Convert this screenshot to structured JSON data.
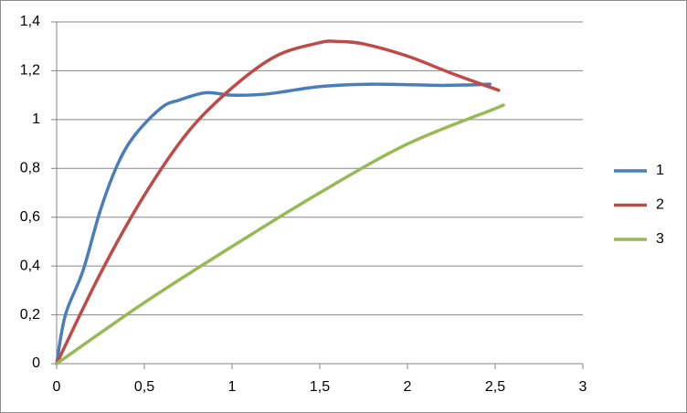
{
  "chart_data": {
    "type": "line",
    "series": [
      {
        "name": "1",
        "color": "#4a7ebb",
        "x": [
          0,
          0.05,
          0.15,
          0.25,
          0.35,
          0.45,
          0.6,
          0.7,
          0.85,
          1.0,
          1.2,
          1.5,
          1.8,
          2.2,
          2.47
        ],
        "values": [
          0,
          0.2,
          0.38,
          0.63,
          0.82,
          0.94,
          1.05,
          1.08,
          1.11,
          1.1,
          1.105,
          1.135,
          1.145,
          1.14,
          1.145
        ]
      },
      {
        "name": "2",
        "color": "#be4b48",
        "x": [
          0,
          0.25,
          0.5,
          0.75,
          1.0,
          1.25,
          1.5,
          1.6,
          1.75,
          2.0,
          2.25,
          2.52
        ],
        "values": [
          0,
          0.37,
          0.69,
          0.95,
          1.13,
          1.26,
          1.315,
          1.32,
          1.31,
          1.26,
          1.19,
          1.12
        ]
      },
      {
        "name": "3",
        "color": "#98b954",
        "x": [
          0,
          0.5,
          1.0,
          1.5,
          2.0,
          2.5,
          2.53
        ],
        "values": [
          0,
          0.25,
          0.48,
          0.7,
          0.9,
          1.045,
          1.055
        ]
      }
    ],
    "xlim": [
      0,
      3
    ],
    "xticks": [
      0,
      {
        "value": 0.5,
        "label": "0,5"
      },
      1,
      {
        "value": 1.5,
        "label": "1,5"
      },
      2,
      {
        "value": 2.5,
        "label": "2,5"
      },
      3
    ],
    "ylim": [
      0,
      1.4
    ],
    "yticks": [
      0,
      {
        "value": 0.2,
        "label": "0,2"
      },
      {
        "value": 0.4,
        "label": "0,4"
      },
      {
        "value": 0.6,
        "label": "0,6"
      },
      {
        "value": 0.8,
        "label": "0,8"
      },
      1,
      {
        "value": 1.2,
        "label": "1,2"
      },
      {
        "value": 1.4,
        "label": "1,4"
      }
    ],
    "grid": true,
    "legend": "right"
  }
}
